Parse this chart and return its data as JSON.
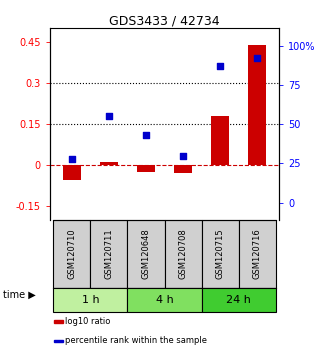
{
  "title": "GDS3433 / 42734",
  "samples": [
    "GSM120710",
    "GSM120711",
    "GSM120648",
    "GSM120708",
    "GSM120715",
    "GSM120716"
  ],
  "log10_ratio": [
    -0.055,
    0.01,
    -0.025,
    -0.03,
    0.18,
    0.44
  ],
  "percentile_rank": [
    28,
    55,
    43,
    30,
    87,
    92
  ],
  "time_groups": [
    {
      "label": "1 h",
      "start": 0,
      "end": 2,
      "color": "#c0f0a0"
    },
    {
      "label": "4 h",
      "start": 2,
      "end": 4,
      "color": "#80e060"
    },
    {
      "label": "24 h",
      "start": 4,
      "end": 6,
      "color": "#40cc30"
    }
  ],
  "yticks_left": [
    -0.15,
    0.0,
    0.15,
    0.3,
    0.45
  ],
  "yticks_right": [
    0,
    25,
    50,
    75,
    100
  ],
  "ylim_left": [
    -0.2,
    0.5
  ],
  "ylim_right": [
    -11.1,
    111.1
  ],
  "hlines": [
    0.15,
    0.3
  ],
  "bar_color": "#cc0000",
  "dot_color": "#0000cc",
  "dashed_line_color": "#cc0000",
  "bar_width": 0.5,
  "dot_size": 22,
  "sample_box_color": "#d0d0d0",
  "label_fontsize": 6,
  "tick_fontsize": 7,
  "title_fontsize": 9
}
